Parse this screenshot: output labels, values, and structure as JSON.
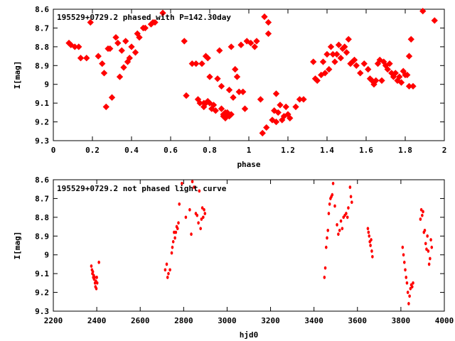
{
  "chart_data": [
    {
      "type": "scatter",
      "title": "195529+0729.2 phased with P=142.30day",
      "xlabel": "phase",
      "ylabel": "I[mag]",
      "xlim": [
        0,
        2
      ],
      "ylim": [
        8.6,
        9.3
      ],
      "y_inverted": true,
      "grid": false,
      "marker_color": "#ff0000",
      "xticks": [
        "0",
        "0.2",
        "0.4",
        "0.6",
        "0.8",
        "1",
        "1.2",
        "1.4",
        "1.6",
        "1.8",
        "2"
      ],
      "yticks": [
        "8.6",
        "8.7",
        "8.8",
        "8.9",
        "9",
        "9.1",
        "9.2",
        "9.3"
      ],
      "points": [
        [
          0.08,
          8.78
        ],
        [
          0.09,
          8.79
        ],
        [
          0.11,
          8.8
        ],
        [
          0.13,
          8.8
        ],
        [
          0.14,
          8.86
        ],
        [
          0.17,
          8.86
        ],
        [
          0.19,
          8.67
        ],
        [
          0.23,
          8.85
        ],
        [
          0.25,
          8.89
        ],
        [
          0.26,
          8.94
        ],
        [
          0.27,
          9.12
        ],
        [
          0.28,
          8.81
        ],
        [
          0.29,
          8.81
        ],
        [
          0.3,
          9.07
        ],
        [
          0.32,
          8.75
        ],
        [
          0.33,
          8.78
        ],
        [
          0.34,
          8.96
        ],
        [
          0.35,
          8.82
        ],
        [
          0.36,
          8.91
        ],
        [
          0.37,
          8.77
        ],
        [
          0.38,
          8.88
        ],
        [
          0.39,
          8.86
        ],
        [
          0.4,
          8.8
        ],
        [
          0.42,
          8.83
        ],
        [
          0.43,
          8.73
        ],
        [
          0.44,
          8.75
        ],
        [
          0.46,
          8.7
        ],
        [
          0.47,
          8.7
        ],
        [
          0.5,
          8.68
        ],
        [
          0.51,
          8.67
        ],
        [
          0.52,
          8.67
        ],
        [
          0.56,
          8.62
        ],
        [
          0.67,
          8.77
        ],
        [
          0.68,
          9.06
        ],
        [
          0.71,
          8.89
        ],
        [
          0.73,
          8.89
        ],
        [
          0.74,
          9.08
        ],
        [
          0.75,
          9.1
        ],
        [
          0.76,
          8.89
        ],
        [
          0.77,
          9.1
        ],
        [
          0.77,
          9.12
        ],
        [
          0.78,
          9.1
        ],
        [
          0.78,
          8.85
        ],
        [
          0.79,
          8.86
        ],
        [
          0.79,
          9.09
        ],
        [
          0.8,
          9.1
        ],
        [
          0.8,
          8.96
        ],
        [
          0.81,
          9.13
        ],
        [
          0.82,
          9.11
        ],
        [
          0.83,
          9.14
        ],
        [
          0.84,
          8.97
        ],
        [
          0.85,
          8.82
        ],
        [
          0.86,
          9.01
        ],
        [
          0.86,
          9.13
        ],
        [
          0.87,
          9.17
        ],
        [
          0.87,
          9.16
        ],
        [
          0.88,
          9.15
        ],
        [
          0.88,
          9.18
        ],
        [
          0.89,
          9.16
        ],
        [
          0.89,
          9.15
        ],
        [
          0.9,
          9.03
        ],
        [
          0.9,
          9.17
        ],
        [
          0.91,
          8.8
        ],
        [
          0.91,
          9.16
        ],
        [
          0.92,
          9.07
        ],
        [
          0.93,
          8.92
        ],
        [
          0.94,
          8.96
        ],
        [
          0.95,
          9.04
        ],
        [
          0.96,
          8.79
        ],
        [
          0.97,
          9.04
        ],
        [
          0.98,
          9.13
        ],
        [
          0.99,
          8.77
        ],
        [
          1.01,
          8.78
        ],
        [
          1.03,
          8.8
        ],
        [
          1.04,
          8.77
        ],
        [
          1.06,
          9.08
        ],
        [
          1.07,
          9.26
        ],
        [
          1.08,
          8.64
        ],
        [
          1.09,
          9.23
        ],
        [
          1.1,
          8.73
        ],
        [
          1.1,
          8.67
        ],
        [
          1.12,
          9.19
        ],
        [
          1.13,
          9.14
        ],
        [
          1.14,
          9.05
        ],
        [
          1.14,
          9.2
        ],
        [
          1.15,
          9.15
        ],
        [
          1.16,
          9.11
        ],
        [
          1.17,
          9.19
        ],
        [
          1.18,
          9.17
        ],
        [
          1.19,
          9.12
        ],
        [
          1.2,
          9.16
        ],
        [
          1.21,
          9.18
        ],
        [
          1.24,
          9.12
        ],
        [
          1.26,
          9.08
        ],
        [
          1.28,
          9.08
        ],
        [
          1.33,
          8.88
        ],
        [
          1.34,
          8.97
        ],
        [
          1.35,
          8.98
        ],
        [
          1.37,
          8.95
        ],
        [
          1.38,
          8.88
        ],
        [
          1.39,
          8.94
        ],
        [
          1.4,
          8.84
        ],
        [
          1.41,
          8.92
        ],
        [
          1.42,
          8.8
        ],
        [
          1.43,
          8.84
        ],
        [
          1.44,
          8.88
        ],
        [
          1.45,
          8.84
        ],
        [
          1.46,
          8.79
        ],
        [
          1.47,
          8.86
        ],
        [
          1.48,
          8.81
        ],
        [
          1.49,
          8.8
        ],
        [
          1.5,
          8.83
        ],
        [
          1.51,
          8.76
        ],
        [
          1.52,
          8.89
        ],
        [
          1.53,
          8.88
        ],
        [
          1.54,
          8.87
        ],
        [
          1.55,
          8.9
        ],
        [
          1.57,
          8.94
        ],
        [
          1.59,
          8.89
        ],
        [
          1.61,
          8.92
        ],
        [
          1.62,
          8.97
        ],
        [
          1.63,
          8.98
        ],
        [
          1.64,
          9.0
        ],
        [
          1.65,
          8.98
        ],
        [
          1.66,
          8.89
        ],
        [
          1.67,
          8.87
        ],
        [
          1.68,
          8.98
        ],
        [
          1.69,
          8.88
        ],
        [
          1.7,
          8.9
        ],
        [
          1.71,
          8.92
        ],
        [
          1.72,
          8.89
        ],
        [
          1.73,
          8.94
        ],
        [
          1.74,
          8.96
        ],
        [
          1.75,
          8.94
        ],
        [
          1.76,
          8.98
        ],
        [
          1.77,
          8.96
        ],
        [
          1.78,
          8.99
        ],
        [
          1.79,
          8.93
        ],
        [
          1.8,
          8.95
        ],
        [
          1.81,
          8.95
        ],
        [
          1.82,
          8.85
        ],
        [
          1.82,
          9.01
        ],
        [
          1.83,
          8.76
        ],
        [
          1.84,
          9.01
        ],
        [
          1.89,
          8.61
        ],
        [
          1.95,
          8.66
        ]
      ]
    },
    {
      "type": "scatter",
      "title": "195529+0729.2 not phased light curve",
      "xlabel": "hjd0",
      "ylabel": "I[mag]",
      "xlim": [
        2200,
        4000
      ],
      "ylim": [
        8.6,
        9.3
      ],
      "y_inverted": true,
      "grid": false,
      "marker_color": "#ff0000",
      "xticks": [
        "2200",
        "2400",
        "2600",
        "2800",
        "3000",
        "3200",
        "3400",
        "3600",
        "3800",
        "4000"
      ],
      "yticks": [
        "8.6",
        "8.7",
        "8.8",
        "8.9",
        "9",
        "9.1",
        "9.2",
        "9.3"
      ],
      "points": [
        [
          2375,
          9.06
        ],
        [
          2378,
          9.08
        ],
        [
          2380,
          9.1
        ],
        [
          2382,
          9.09
        ],
        [
          2384,
          9.12
        ],
        [
          2386,
          9.11
        ],
        [
          2388,
          9.13
        ],
        [
          2390,
          9.12
        ],
        [
          2392,
          9.15
        ],
        [
          2394,
          9.17
        ],
        [
          2396,
          9.14
        ],
        [
          2398,
          9.18
        ],
        [
          2400,
          9.12
        ],
        [
          2402,
          9.15
        ],
        [
          2410,
          9.04
        ],
        [
          2715,
          9.08
        ],
        [
          2722,
          9.05
        ],
        [
          2726,
          9.12
        ],
        [
          2730,
          9.1
        ],
        [
          2737,
          9.08
        ],
        [
          2745,
          8.99
        ],
        [
          2748,
          8.96
        ],
        [
          2752,
          8.93
        ],
        [
          2756,
          8.88
        ],
        [
          2760,
          8.91
        ],
        [
          2764,
          8.88
        ],
        [
          2768,
          8.85
        ],
        [
          2772,
          8.86
        ],
        [
          2776,
          8.83
        ],
        [
          2780,
          8.73
        ],
        [
          2792,
          8.62
        ],
        [
          2810,
          8.8
        ],
        [
          2828,
          8.76
        ],
        [
          2835,
          8.89
        ],
        [
          2840,
          8.61
        ],
        [
          2848,
          8.64
        ],
        [
          2856,
          8.78
        ],
        [
          2862,
          8.79
        ],
        [
          2868,
          8.83
        ],
        [
          2872,
          8.66
        ],
        [
          2878,
          8.86
        ],
        [
          2882,
          8.81
        ],
        [
          2886,
          8.75
        ],
        [
          2890,
          8.8
        ],
        [
          2894,
          8.76
        ],
        [
          2898,
          8.78
        ],
        [
          3448,
          9.12
        ],
        [
          3452,
          9.07
        ],
        [
          3456,
          8.96
        ],
        [
          3460,
          8.91
        ],
        [
          3464,
          8.87
        ],
        [
          3468,
          8.78
        ],
        [
          3472,
          8.73
        ],
        [
          3476,
          8.7
        ],
        [
          3480,
          8.69
        ],
        [
          3484,
          8.68
        ],
        [
          3488,
          8.62
        ],
        [
          3496,
          8.74
        ],
        [
          3506,
          8.84
        ],
        [
          3512,
          8.89
        ],
        [
          3518,
          8.87
        ],
        [
          3524,
          8.82
        ],
        [
          3530,
          8.86
        ],
        [
          3536,
          8.8
        ],
        [
          3542,
          8.79
        ],
        [
          3548,
          8.78
        ],
        [
          3554,
          8.8
        ],
        [
          3558,
          8.75
        ],
        [
          3566,
          8.64
        ],
        [
          3570,
          8.69
        ],
        [
          3574,
          8.72
        ],
        [
          3648,
          8.86
        ],
        [
          3651,
          8.88
        ],
        [
          3654,
          8.9
        ],
        [
          3657,
          8.93
        ],
        [
          3660,
          8.95
        ],
        [
          3663,
          8.92
        ],
        [
          3666,
          8.98
        ],
        [
          3669,
          9.01
        ],
        [
          3808,
          8.96
        ],
        [
          3812,
          9.0
        ],
        [
          3816,
          9.04
        ],
        [
          3820,
          9.08
        ],
        [
          3824,
          9.12
        ],
        [
          3828,
          9.15
        ],
        [
          3832,
          9.2
        ],
        [
          3836,
          9.26
        ],
        [
          3840,
          9.22
        ],
        [
          3844,
          9.18
        ],
        [
          3848,
          9.16
        ],
        [
          3852,
          9.17
        ],
        [
          3856,
          9.15
        ],
        [
          3890,
          8.81
        ],
        [
          3894,
          8.76
        ],
        [
          3898,
          8.79
        ],
        [
          3902,
          8.77
        ],
        [
          3906,
          8.88
        ],
        [
          3910,
          8.87
        ],
        [
          3914,
          8.94
        ],
        [
          3918,
          8.97
        ],
        [
          3922,
          8.9
        ],
        [
          3926,
          8.98
        ],
        [
          3930,
          9.05
        ],
        [
          3934,
          9.02
        ],
        [
          3938,
          8.92
        ],
        [
          3942,
          8.96
        ]
      ]
    }
  ]
}
